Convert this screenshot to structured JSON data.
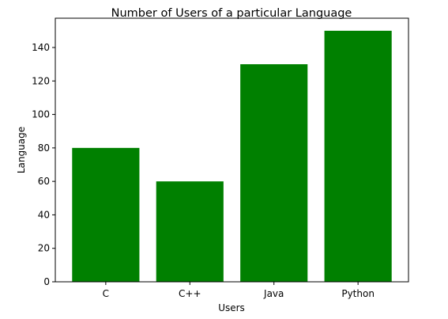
{
  "chart_data": {
    "type": "bar",
    "title": "Number of Users of a particular Language",
    "xlabel": "Users",
    "ylabel": "Language",
    "categories": [
      "C",
      "C++",
      "Java",
      "Python"
    ],
    "values": [
      80,
      60,
      130,
      150
    ],
    "ylim": [
      0,
      157.5
    ],
    "yticks": [
      0,
      20,
      40,
      60,
      80,
      100,
      120,
      140
    ],
    "bar_color": "#008000",
    "grid": false,
    "legend": "none"
  }
}
